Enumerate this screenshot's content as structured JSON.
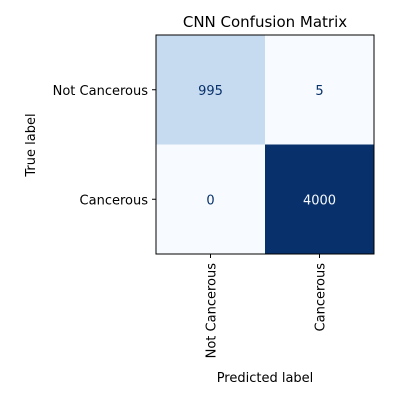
{
  "chart_data": {
    "type": "heatmap",
    "title": "CNN Confusion Matrix",
    "xlabel": "Predicted label",
    "ylabel": "True label",
    "x_categories": [
      "Not Cancerous",
      "Cancerous"
    ],
    "y_categories": [
      "Not Cancerous",
      "Cancerous"
    ],
    "values": [
      [
        995,
        5
      ],
      [
        0,
        4000
      ]
    ],
    "colormap": "Blues",
    "value_range": [
      0,
      4000
    ],
    "colors": {
      "low": "#f7fbff",
      "mid": "#c6dbef",
      "high": "#08306b",
      "text_dark": "#08306b",
      "text_light": "#f7fbff"
    },
    "grid": false,
    "colorbar": false
  }
}
